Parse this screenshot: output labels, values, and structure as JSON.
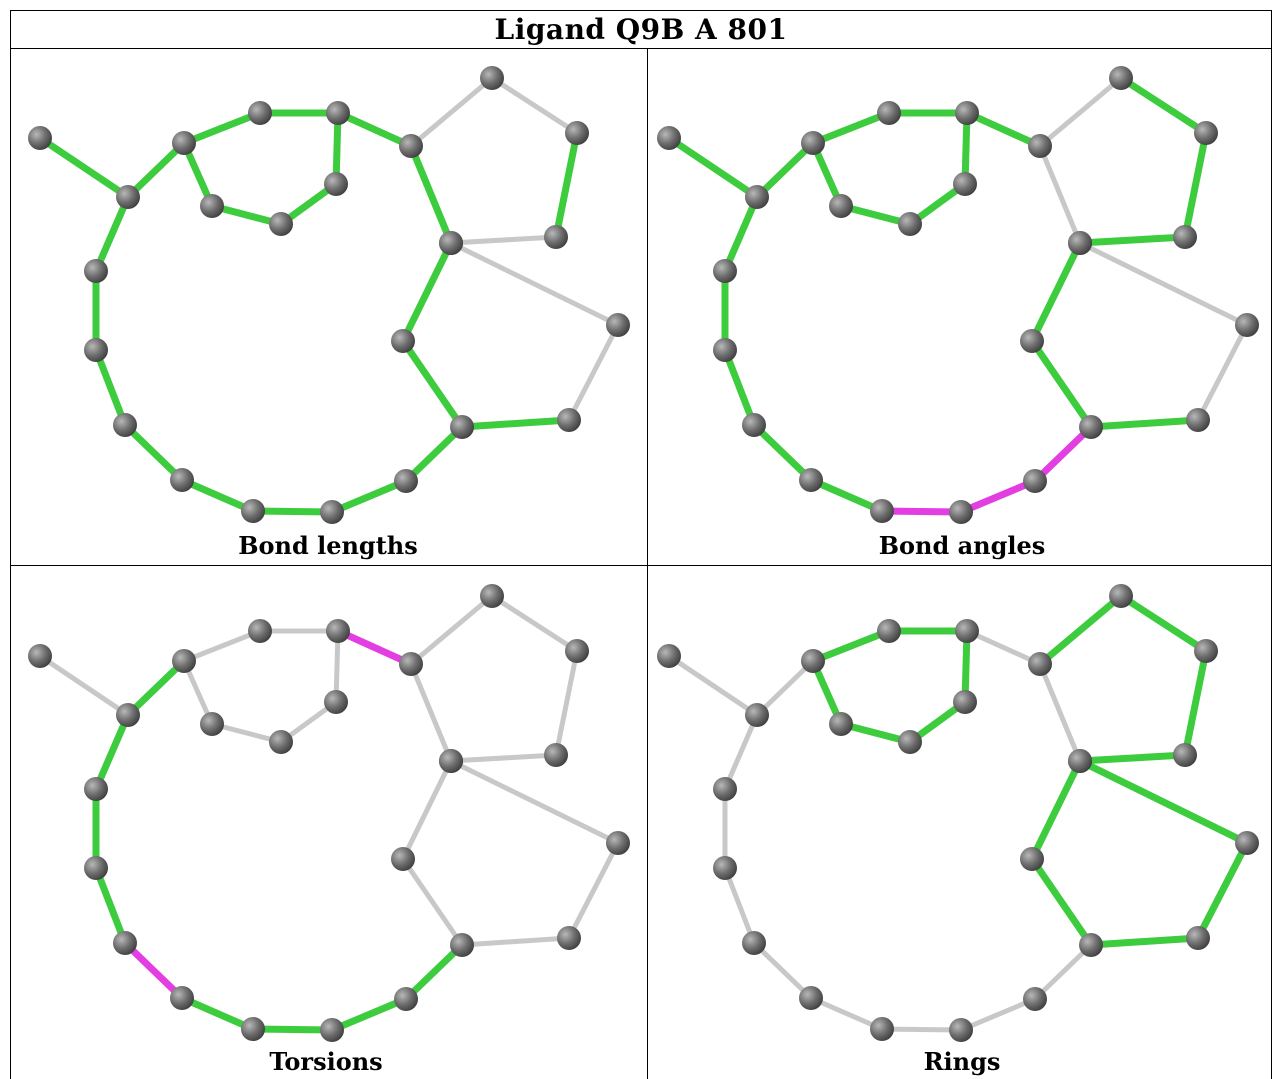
{
  "title": "Ligand Q9B A 801",
  "colors": {
    "outlier": "#e23ee2",
    "ok": "#3dcc3d",
    "not_assessed": "#c8c8c8",
    "atom": "#6e6e6e"
  },
  "panels": [
    {
      "caption": "Bond lengths",
      "bonds": {
        "0-1": "green",
        "1-2": "green",
        "2-3": "green",
        "3-4": "green",
        "4-5": "green",
        "5-6": "green",
        "2-7": "green",
        "7-8": "green",
        "8-9": "green",
        "9-4": "green",
        "5-10": "gray",
        "10-11": "gray",
        "11-12": "green",
        "12-13": "gray",
        "13-6": "gray",
        "13-14": "gray",
        "14-15": "gray",
        "15-16": "green",
        "16-17": "green",
        "17-6": "green",
        "16-18": "green",
        "18-19": "green",
        "19-20": "green",
        "20-21": "green",
        "21-22": "green",
        "22-23": "green",
        "23-24": "green",
        "24-1": "green"
      }
    },
    {
      "caption": "Bond angles",
      "bonds": {
        "0-1": "green",
        "1-2": "green",
        "2-3": "green",
        "3-4": "green",
        "4-5": "green",
        "5-6": "gray",
        "2-7": "green",
        "7-8": "green",
        "8-9": "green",
        "9-4": "green",
        "5-10": "gray",
        "10-11": "green",
        "11-12": "green",
        "12-13": "green",
        "13-6": "gray",
        "13-14": "gray",
        "14-15": "gray",
        "15-16": "green",
        "16-17": "green",
        "17-6": "green",
        "16-18": "magenta",
        "18-19": "magenta",
        "19-20": "magenta",
        "20-21": "green",
        "21-22": "green",
        "22-23": "green",
        "23-24": "green",
        "24-1": "green"
      }
    },
    {
      "caption": "Torsions",
      "bonds": {
        "0-1": "gray",
        "1-2": "green",
        "2-3": "gray",
        "3-4": "gray",
        "4-5": "magenta",
        "5-6": "gray",
        "2-7": "gray",
        "7-8": "gray",
        "8-9": "gray",
        "9-4": "gray",
        "5-10": "gray",
        "10-11": "gray",
        "11-12": "gray",
        "12-13": "gray",
        "13-6": "gray",
        "13-14": "gray",
        "14-15": "gray",
        "15-16": "gray",
        "16-17": "gray",
        "17-6": "gray",
        "16-18": "green",
        "18-19": "green",
        "19-20": "green",
        "20-21": "green",
        "21-22": "magenta",
        "22-23": "green",
        "23-24": "green",
        "24-1": "green"
      }
    },
    {
      "caption": "Rings",
      "bonds": {
        "0-1": "gray",
        "1-2": "gray",
        "2-3": "green",
        "3-4": "green",
        "4-5": "gray",
        "5-6": "gray",
        "2-7": "green",
        "7-8": "green",
        "8-9": "green",
        "9-4": "green",
        "5-10": "green",
        "10-11": "green",
        "11-12": "green",
        "12-13": "green",
        "13-6": "green",
        "13-14": "green",
        "14-15": "green",
        "15-16": "green",
        "16-17": "green",
        "17-6": "green",
        "16-18": "gray",
        "18-19": "gray",
        "19-20": "gray",
        "20-21": "gray",
        "21-22": "gray",
        "22-23": "gray",
        "23-24": "gray",
        "24-1": "gray"
      }
    }
  ]
}
